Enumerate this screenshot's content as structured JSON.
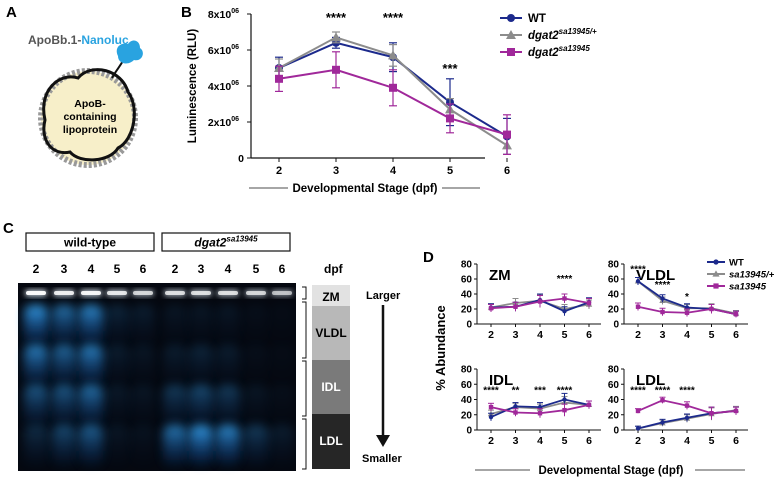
{
  "panel_labels": {
    "A": "A",
    "B": "B",
    "C": "C",
    "D": "D"
  },
  "panel_a": {
    "title_prefix": "ApoBb.1-",
    "title_suffix": "Nanoluc",
    "particle_text": [
      "ApoB-",
      "containing",
      "lipoprotein"
    ],
    "colors": {
      "nanoluc": "#29a3e0",
      "particle_fill": "#f7efc9"
    }
  },
  "panel_c": {
    "group_labels": {
      "wt": "wild-type",
      "mut_gene": "dgat2",
      "mut_sup": "sa13945"
    },
    "lane_labels": [
      "2",
      "3",
      "4",
      "5",
      "6",
      "2",
      "3",
      "4",
      "5",
      "6"
    ],
    "dpf_label": "dpf",
    "bands": [
      "ZM",
      "VLDL",
      "IDL",
      "LDL"
    ],
    "size_labels": {
      "top": "Larger",
      "bottom": "Smaller"
    }
  },
  "chart_data": [
    {
      "type": "line",
      "panel": "B",
      "x": [
        2,
        3,
        4,
        5,
        6
      ],
      "xlabel": "Developmental Stage (dpf)",
      "ylabel": "Luminescence (RLU)",
      "ylim": [
        0,
        8000000
      ],
      "yticks": [
        "0",
        "2x10",
        "4x10",
        "6x10",
        "8x10"
      ],
      "ytick_exp": "06",
      "series": [
        {
          "name": "WT",
          "color": "#1c2a8c",
          "marker": "circle",
          "values": [
            5000000,
            6400000,
            5600000,
            3100000,
            1200000
          ],
          "err": [
            600000,
            300000,
            800000,
            1300000,
            1000000
          ]
        },
        {
          "name_gene": "dgat2",
          "name_sup": "sa13945/+",
          "color": "#8c8c8c",
          "marker": "triangle",
          "values": [
            5000000,
            6700000,
            5700000,
            2700000,
            700000
          ],
          "err": [
            500000,
            300000,
            600000,
            600000,
            500000
          ]
        },
        {
          "name_gene": "dgat2",
          "name_sup": "sa13945",
          "color": "#a0289a",
          "marker": "square",
          "values": [
            4400000,
            4900000,
            3900000,
            2200000,
            1300000
          ],
          "err": [
            700000,
            1000000,
            1000000,
            800000,
            1100000
          ]
        }
      ],
      "annotations": [
        {
          "x": 3,
          "text": "****"
        },
        {
          "x": 4,
          "text": "****"
        },
        {
          "x": 5,
          "text": "***"
        }
      ],
      "legend": "top-right"
    },
    {
      "type": "line",
      "panel": "D",
      "ylabel": "% Abundance",
      "xlabel": "Developmental Stage (dpf)",
      "x": [
        2,
        3,
        4,
        5,
        6
      ],
      "ylim": [
        0,
        80
      ],
      "yticks": [
        0,
        20,
        40,
        60,
        80
      ],
      "legend": [
        {
          "name": "WT",
          "color": "#1c2a8c"
        },
        {
          "name": "sa13945/+",
          "color": "#8c8c8c"
        },
        {
          "name": "sa13945",
          "color": "#a0289a"
        }
      ],
      "subplots": [
        {
          "title": "ZM",
          "wt": [
            22,
            23,
            32,
            17,
            29
          ],
          "het": [
            22,
            28,
            31,
            20,
            26
          ],
          "mut": [
            21,
            23,
            30,
            34,
            28
          ],
          "err": [
            5,
            6,
            8,
            6,
            6
          ],
          "annotations": [
            {
              "x": 5,
              "text": "****"
            }
          ]
        },
        {
          "title": "VLDL",
          "wt": [
            57,
            34,
            22,
            20,
            13
          ],
          "het": [
            57,
            31,
            21,
            21,
            14
          ],
          "mut": [
            23,
            16,
            15,
            20,
            13
          ],
          "err": [
            5,
            5,
            5,
            6,
            4
          ],
          "annotations": [
            {
              "x": 2,
              "text": "****"
            },
            {
              "x": 3,
              "text": "****"
            },
            {
              "x": 4,
              "text": "*"
            }
          ]
        },
        {
          "title": "IDL",
          "wt": [
            17,
            31,
            30,
            40,
            33
          ],
          "het": [
            21,
            30,
            28,
            36,
            33
          ],
          "mut": [
            30,
            23,
            22,
            26,
            33
          ],
          "err": [
            5,
            5,
            6,
            8,
            5
          ],
          "annotations": [
            {
              "x": 2,
              "text": "****"
            },
            {
              "x": 3,
              "text": "**"
            },
            {
              "x": 4,
              "text": "***"
            },
            {
              "x": 5,
              "text": "****"
            }
          ]
        },
        {
          "title": "LDL",
          "wt": [
            2,
            10,
            16,
            22,
            25
          ],
          "het": [
            2,
            9,
            15,
            21,
            26
          ],
          "mut": [
            25,
            39,
            32,
            22,
            25
          ],
          "err": [
            3,
            4,
            5,
            8,
            5
          ],
          "annotations": [
            {
              "x": 2,
              "text": "****"
            },
            {
              "x": 3,
              "text": "****"
            },
            {
              "x": 4,
              "text": "****"
            }
          ]
        }
      ]
    }
  ]
}
